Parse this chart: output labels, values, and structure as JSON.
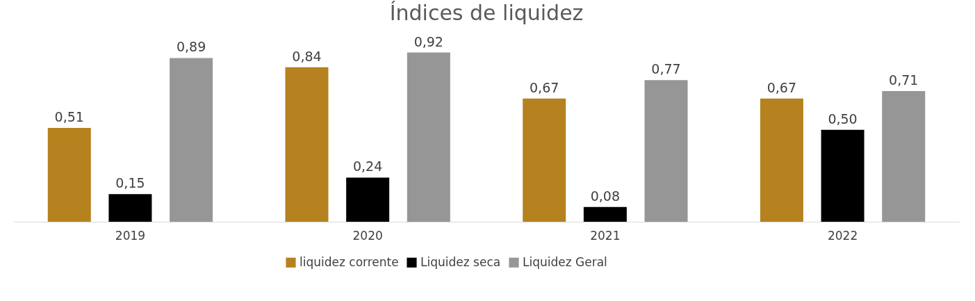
{
  "chart_data": {
    "type": "bar",
    "title": "Índices de liquidez",
    "categories": [
      "2019",
      "2020",
      "2021",
      "2022"
    ],
    "series": [
      {
        "name": "liquidez corrente",
        "color": "#b5821f",
        "values": [
          0.51,
          0.84,
          0.67,
          0.67
        ],
        "value_labels": [
          "0,51",
          "0,84",
          "0,67",
          "0,67"
        ]
      },
      {
        "name": "Liquidez seca",
        "color": "#000000",
        "values": [
          0.15,
          0.24,
          0.08,
          0.5
        ],
        "value_labels": [
          "0,15",
          "0,24",
          "0,08",
          "0,50"
        ]
      },
      {
        "name": "Liquidez Geral",
        "color": "#969696",
        "values": [
          0.89,
          0.92,
          0.77,
          0.71
        ],
        "value_labels": [
          "0,89",
          "0,92",
          "0,77",
          "0,71"
        ]
      }
    ],
    "grid": false,
    "legend": "bottom"
  }
}
